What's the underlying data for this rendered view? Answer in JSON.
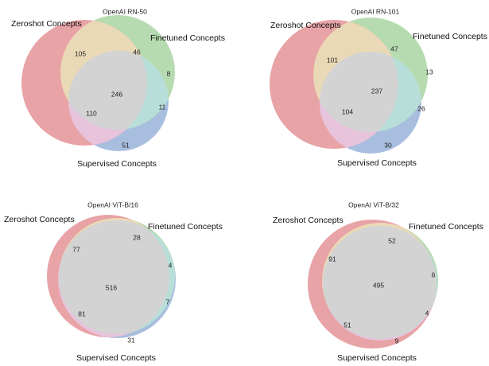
{
  "set_names": {
    "zeroshot": "Zeroshot Concepts",
    "finetuned": "Finetuned Concepts",
    "supervised": "Supervised Concepts"
  },
  "colors": {
    "zeroshot": "#e8a3a6",
    "finetuned": "#b6dbb0",
    "supervised": "#a8bedf",
    "overlap_all": "#d3d3d3",
    "zeroshot_finetuned": "#ead9b6",
    "zeroshot_supervised": "#e7c3dc",
    "finetuned_supervised": "#b7ded8"
  },
  "diagrams": [
    {
      "title": "OpenAI RN-50",
      "counts": {
        "zeroshot_only": "105",
        "zeroshot_finetuned": "46",
        "finetuned_only": "8",
        "all_three": "246",
        "zeroshot_supervised": "110",
        "finetuned_supervised": "11",
        "supervised_only": "51"
      }
    },
    {
      "title": "OpenAI RN-101",
      "counts": {
        "zeroshot_only": "101",
        "zeroshot_finetuned": "47",
        "finetuned_only": "13",
        "all_three": "237",
        "zeroshot_supervised": "104",
        "finetuned_supervised": "26",
        "supervised_only": "30"
      }
    },
    {
      "title": "OpenAI ViT-B/16",
      "counts": {
        "zeroshot_only": "77",
        "zeroshot_finetuned": "28",
        "finetuned_only": "4",
        "all_three": "516",
        "zeroshot_supervised": "81",
        "finetuned_supervised": "7",
        "supervised_only": "31"
      }
    },
    {
      "title": "OpenAI ViT-B/32",
      "counts": {
        "zeroshot_only": "91",
        "zeroshot_finetuned": "52",
        "finetuned_only": "6",
        "all_three": "495",
        "zeroshot_supervised": "51",
        "finetuned_supervised": "4",
        "supervised_only": "9"
      }
    }
  ]
}
